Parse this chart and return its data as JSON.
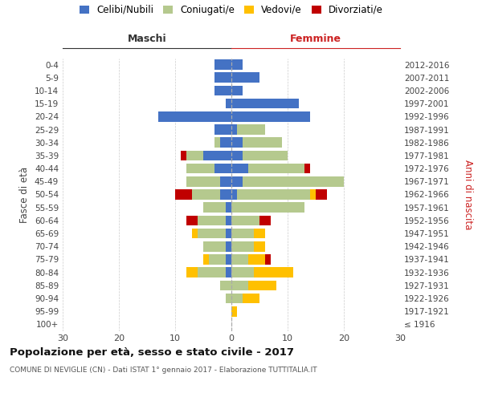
{
  "age_groups": [
    "100+",
    "95-99",
    "90-94",
    "85-89",
    "80-84",
    "75-79",
    "70-74",
    "65-69",
    "60-64",
    "55-59",
    "50-54",
    "45-49",
    "40-44",
    "35-39",
    "30-34",
    "25-29",
    "20-24",
    "15-19",
    "10-14",
    "5-9",
    "0-4"
  ],
  "birth_years": [
    "≤ 1916",
    "1917-1921",
    "1922-1926",
    "1927-1931",
    "1932-1936",
    "1937-1941",
    "1942-1946",
    "1947-1951",
    "1952-1956",
    "1957-1961",
    "1962-1966",
    "1967-1971",
    "1972-1976",
    "1977-1981",
    "1982-1986",
    "1987-1991",
    "1992-1996",
    "1997-2001",
    "2002-2006",
    "2007-2011",
    "2012-2016"
  ],
  "maschi": {
    "celibi": [
      0,
      0,
      0,
      0,
      1,
      1,
      1,
      1,
      1,
      1,
      2,
      2,
      3,
      5,
      2,
      3,
      13,
      1,
      3,
      3,
      3
    ],
    "coniugati": [
      0,
      0,
      1,
      2,
      5,
      3,
      4,
      5,
      5,
      4,
      5,
      6,
      5,
      3,
      1,
      0,
      0,
      0,
      0,
      0,
      0
    ],
    "vedovi": [
      0,
      0,
      0,
      0,
      2,
      1,
      0,
      1,
      0,
      0,
      0,
      0,
      0,
      0,
      0,
      0,
      0,
      0,
      0,
      0,
      0
    ],
    "divorziati": [
      0,
      0,
      0,
      0,
      0,
      0,
      0,
      0,
      2,
      0,
      3,
      0,
      0,
      1,
      0,
      0,
      0,
      0,
      0,
      0,
      0
    ]
  },
  "femmine": {
    "nubili": [
      0,
      0,
      0,
      0,
      0,
      0,
      0,
      0,
      0,
      0,
      1,
      2,
      3,
      2,
      2,
      1,
      14,
      12,
      2,
      5,
      2
    ],
    "coniugate": [
      0,
      0,
      2,
      3,
      4,
      3,
      4,
      4,
      5,
      13,
      13,
      18,
      10,
      8,
      7,
      5,
      0,
      0,
      0,
      0,
      0
    ],
    "vedove": [
      0,
      1,
      3,
      5,
      7,
      3,
      2,
      2,
      0,
      0,
      1,
      0,
      0,
      0,
      0,
      0,
      0,
      0,
      0,
      0,
      0
    ],
    "divorziate": [
      0,
      0,
      0,
      0,
      0,
      1,
      0,
      0,
      2,
      0,
      2,
      0,
      1,
      0,
      0,
      0,
      0,
      0,
      0,
      0,
      0
    ]
  },
  "colors": {
    "celibi": "#4472c4",
    "coniugati": "#b5c98e",
    "vedovi": "#ffc000",
    "divorziati": "#c00000"
  },
  "xlim": 30,
  "title": "Popolazione per età, sesso e stato civile - 2017",
  "subtitle": "COMUNE DI NEVIGLIE (CN) - Dati ISTAT 1° gennaio 2017 - Elaborazione TUTTITALIA.IT",
  "ylabel_left": "Fasce di età",
  "ylabel_right": "Anni di nascita",
  "header_maschi": "Maschi",
  "header_femmine": "Femmine",
  "legend_labels": [
    "Celibi/Nubili",
    "Coniugati/e",
    "Vedovi/e",
    "Divorziati/e"
  ],
  "bg_color": "#ffffff",
  "grid_color": "#cccccc",
  "maschi_color": "#333333",
  "femmine_color": "#cc2222"
}
